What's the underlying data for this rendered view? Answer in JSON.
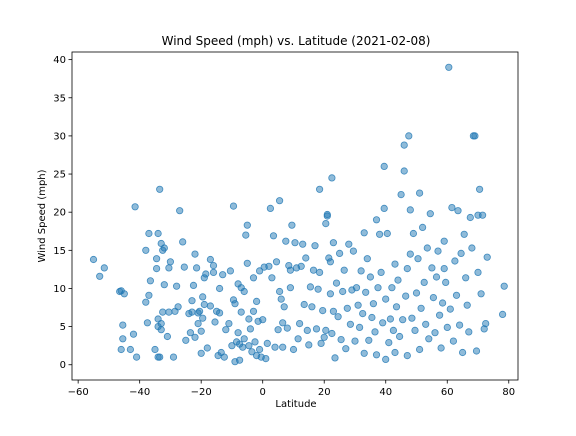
{
  "chart_data": {
    "type": "scatter",
    "title": "Wind Speed (mph) vs. Latitude (2021-02-08)",
    "xlabel": "Latitude",
    "ylabel": "Wind Speed (mph)",
    "xlim": [
      -62,
      83
    ],
    "ylim": [
      -2,
      41
    ],
    "xticks": [
      -60,
      -40,
      -20,
      0,
      20,
      40,
      60,
      80
    ],
    "yticks": [
      0,
      5,
      10,
      15,
      20,
      25,
      30,
      35,
      40
    ],
    "xtick_labels": [
      "−60",
      "−40",
      "−20",
      "0",
      "20",
      "40",
      "60",
      "80"
    ],
    "ytick_labels": [
      "0",
      "5",
      "10",
      "15",
      "20",
      "25",
      "30",
      "35",
      "40"
    ],
    "grid": false,
    "marker_color": "#1f77b4",
    "marker_alpha": 0.5,
    "points": [
      [
        -55,
        13.8
      ],
      [
        -53,
        11.6
      ],
      [
        -51.5,
        12.7
      ],
      [
        -46.5,
        9.6
      ],
      [
        -46,
        9.7
      ],
      [
        -45,
        9.3
      ],
      [
        -46,
        2
      ],
      [
        -45.5,
        3.4
      ],
      [
        -45.5,
        5.2
      ],
      [
        -43,
        2
      ],
      [
        -42,
        4
      ],
      [
        -41.5,
        20.7
      ],
      [
        -41,
        1
      ],
      [
        -38,
        15
      ],
      [
        -38,
        8.2
      ],
      [
        -37.5,
        5.5
      ],
      [
        -37,
        9.1
      ],
      [
        -37,
        17.2
      ],
      [
        -36.5,
        11
      ],
      [
        -35,
        2
      ],
      [
        -34.5,
        12.6
      ],
      [
        -34.5,
        13.9
      ],
      [
        -34,
        17.2
      ],
      [
        -34,
        5
      ],
      [
        -34,
        6
      ],
      [
        -34,
        1
      ],
      [
        -33.5,
        23
      ],
      [
        -33.5,
        1
      ],
      [
        -33,
        4.6
      ],
      [
        -33,
        5.4
      ],
      [
        -33,
        15.9
      ],
      [
        -32.5,
        6.9
      ],
      [
        -32.5,
        15
      ],
      [
        -32,
        15.3
      ],
      [
        -32,
        10.5
      ],
      [
        -31,
        3.7
      ],
      [
        -30.5,
        6.9
      ],
      [
        -30.5,
        12.7
      ],
      [
        -30,
        13.5
      ],
      [
        -29,
        1
      ],
      [
        -28.5,
        7
      ],
      [
        -28,
        10.3
      ],
      [
        -27.5,
        7.6
      ],
      [
        -27,
        20.2
      ],
      [
        -26,
        16.1
      ],
      [
        -25.5,
        12.8
      ],
      [
        -25,
        3.2
      ],
      [
        -24,
        6.7
      ],
      [
        -23.5,
        4.2
      ],
      [
        -23,
        6.9
      ],
      [
        -23,
        8.4
      ],
      [
        -22.5,
        10.4
      ],
      [
        -22,
        3.6
      ],
      [
        -22,
        14.5
      ],
      [
        -21.5,
        12.7
      ],
      [
        -21,
        6.8
      ],
      [
        -21,
        5.4
      ],
      [
        -20.5,
        7
      ],
      [
        -20,
        1.5
      ],
      [
        -20,
        4.4
      ],
      [
        -19.5,
        8.9
      ],
      [
        -19.5,
        6.1
      ],
      [
        -19,
        11.4
      ],
      [
        -19,
        7.9
      ],
      [
        -18.5,
        11.9
      ],
      [
        -18,
        2.2
      ],
      [
        -17,
        7.7
      ],
      [
        -17,
        13.8
      ],
      [
        -16,
        12.1
      ],
      [
        -16,
        13
      ],
      [
        -15.5,
        5.6
      ],
      [
        -15,
        7
      ],
      [
        -14.5,
        1.2
      ],
      [
        -14,
        6.8
      ],
      [
        -14,
        10
      ],
      [
        -13.5,
        1.6
      ],
      [
        -13,
        11.8
      ],
      [
        -12.5,
        1
      ],
      [
        -12,
        4.6
      ],
      [
        -11,
        5.4
      ],
      [
        -10.5,
        12.3
      ],
      [
        -10,
        2.5
      ],
      [
        -9.5,
        20.8
      ],
      [
        -9.5,
        8.5
      ],
      [
        -9,
        8
      ],
      [
        -9,
        0.4
      ],
      [
        -8.5,
        3
      ],
      [
        -8,
        10.6
      ],
      [
        -8,
        4.2
      ],
      [
        -7.5,
        2.7
      ],
      [
        -7.5,
        0.6
      ],
      [
        -7,
        6.9
      ],
      [
        -7,
        10.1
      ],
      [
        -6.5,
        2.3
      ],
      [
        -6,
        3.4
      ],
      [
        -6,
        9.6
      ],
      [
        -5.5,
        17
      ],
      [
        -5,
        18.3
      ],
      [
        -5,
        13.3
      ],
      [
        -4.5,
        2.5
      ],
      [
        -4.5,
        6
      ],
      [
        -4,
        4.7
      ],
      [
        -3.5,
        1.7
      ],
      [
        -3,
        7
      ],
      [
        -3,
        11.4
      ],
      [
        -2.5,
        3
      ],
      [
        -2,
        1.2
      ],
      [
        -2,
        8.3
      ],
      [
        -1.5,
        5.7
      ],
      [
        -1,
        2
      ],
      [
        -1,
        12.3
      ],
      [
        -0.5,
        1
      ],
      [
        0,
        5.9
      ],
      [
        0.5,
        12.8
      ],
      [
        1,
        0.8
      ],
      [
        1.5,
        2.8
      ],
      [
        2,
        12.9
      ],
      [
        2.5,
        20.5
      ],
      [
        3,
        11.4
      ],
      [
        3.5,
        16.9
      ],
      [
        4,
        2.3
      ],
      [
        4.5,
        13.5
      ],
      [
        5,
        4.6
      ],
      [
        5.5,
        21.5
      ],
      [
        5.5,
        9.6
      ],
      [
        6,
        8.6
      ],
      [
        6.5,
        5.5
      ],
      [
        6.5,
        2.3
      ],
      [
        7,
        7.6
      ],
      [
        7.5,
        16.2
      ],
      [
        8,
        4.8
      ],
      [
        8.5,
        13
      ],
      [
        9,
        10.1
      ],
      [
        9,
        12.4
      ],
      [
        9.5,
        18.3
      ],
      [
        10,
        2
      ],
      [
        10.5,
        16
      ],
      [
        11,
        12.7
      ],
      [
        11.5,
        3.4
      ],
      [
        12,
        5.4
      ],
      [
        12.5,
        12.9
      ],
      [
        13,
        15.8
      ],
      [
        13.5,
        7.9
      ],
      [
        14,
        14
      ],
      [
        14.5,
        4.5
      ],
      [
        15,
        2.6
      ],
      [
        15.5,
        10.2
      ],
      [
        16,
        7.6
      ],
      [
        16.5,
        12.4
      ],
      [
        17,
        15.6
      ],
      [
        17.5,
        4.7
      ],
      [
        18,
        9.9
      ],
      [
        18.5,
        23
      ],
      [
        18.5,
        12.1
      ],
      [
        19,
        2.8
      ],
      [
        19.5,
        7.1
      ],
      [
        20,
        3.6
      ],
      [
        20.5,
        18.5
      ],
      [
        20.5,
        4.5
      ],
      [
        21,
        19.5
      ],
      [
        21,
        19.7
      ],
      [
        21.5,
        14
      ],
      [
        22,
        13.5
      ],
      [
        22,
        9.3
      ],
      [
        22.5,
        24.5
      ],
      [
        22.5,
        4.1
      ],
      [
        23,
        7
      ],
      [
        23,
        16
      ],
      [
        23.5,
        0.9
      ],
      [
        24,
        10.7
      ],
      [
        24.5,
        6.3
      ],
      [
        25,
        14.6
      ],
      [
        25.5,
        3.3
      ],
      [
        26,
        9.6
      ],
      [
        26.5,
        12.4
      ],
      [
        27,
        2.1
      ],
      [
        27.5,
        7.4
      ],
      [
        28,
        15.8
      ],
      [
        28.5,
        5.3
      ],
      [
        29,
        9.8
      ],
      [
        29.5,
        14.9
      ],
      [
        30,
        3.1
      ],
      [
        30.5,
        10.1
      ],
      [
        31,
        7.8
      ],
      [
        31.5,
        4.9
      ],
      [
        32,
        12.3
      ],
      [
        32.5,
        6.7
      ],
      [
        33,
        1.5
      ],
      [
        33,
        17.3
      ],
      [
        33.5,
        9.5
      ],
      [
        34,
        13.9
      ],
      [
        34.5,
        3.2
      ],
      [
        35,
        11.5
      ],
      [
        35.5,
        6.2
      ],
      [
        36,
        8
      ],
      [
        36.5,
        4.3
      ],
      [
        37,
        1.3
      ],
      [
        37,
        19
      ],
      [
        37.5,
        10.1
      ],
      [
        38,
        17.1
      ],
      [
        38.5,
        12.1
      ],
      [
        39,
        5.5
      ],
      [
        39.5,
        26
      ],
      [
        39.5,
        20.5
      ],
      [
        40,
        0.7
      ],
      [
        40,
        8.6
      ],
      [
        40.5,
        17.2
      ],
      [
        41,
        2.9
      ],
      [
        41.5,
        6
      ],
      [
        42,
        10.1
      ],
      [
        42.5,
        4.5
      ],
      [
        43,
        1.6
      ],
      [
        43,
        13.2
      ],
      [
        43.5,
        7.6
      ],
      [
        44,
        11.1
      ],
      [
        44.5,
        3.7
      ],
      [
        45,
        22.3
      ],
      [
        45.5,
        5.9
      ],
      [
        46,
        25.4
      ],
      [
        46,
        28.8
      ],
      [
        46.5,
        9
      ],
      [
        47,
        12.6
      ],
      [
        47,
        1.2
      ],
      [
        47.5,
        30
      ],
      [
        48,
        14.5
      ],
      [
        48,
        20.3
      ],
      [
        48.5,
        6.1
      ],
      [
        49,
        17.2
      ],
      [
        49.5,
        4.5
      ],
      [
        50,
        9.4
      ],
      [
        50.5,
        13.9
      ],
      [
        51,
        2
      ],
      [
        51,
        22.5
      ],
      [
        51.5,
        7.4
      ],
      [
        52,
        18
      ],
      [
        52.5,
        10.8
      ],
      [
        53,
        5.3
      ],
      [
        53.5,
        15.3
      ],
      [
        54,
        3.4
      ],
      [
        54.5,
        19.8
      ],
      [
        55,
        12.7
      ],
      [
        55.5,
        8.8
      ],
      [
        56,
        4.2
      ],
      [
        56.5,
        11.5
      ],
      [
        57,
        14.9
      ],
      [
        57.5,
        6.5
      ],
      [
        58,
        2.2
      ],
      [
        58.5,
        8.1
      ],
      [
        59,
        16.2
      ],
      [
        59,
        12.6
      ],
      [
        59.5,
        10.8
      ],
      [
        60,
        4.9
      ],
      [
        60.5,
        39
      ],
      [
        61,
        7.3
      ],
      [
        61.5,
        20.6
      ],
      [
        62,
        3.1
      ],
      [
        62.5,
        13.6
      ],
      [
        63,
        9.1
      ],
      [
        63.5,
        20.2
      ],
      [
        64,
        5.2
      ],
      [
        64.5,
        14.6
      ],
      [
        65,
        1.6
      ],
      [
        65.5,
        17.1
      ],
      [
        66,
        11.4
      ],
      [
        66.5,
        7.8
      ],
      [
        67,
        4.3
      ],
      [
        67.5,
        19.3
      ],
      [
        68,
        15.3
      ],
      [
        68.5,
        30
      ],
      [
        69,
        30
      ],
      [
        69.5,
        1.8
      ],
      [
        70,
        12.1
      ],
      [
        70,
        19.6
      ],
      [
        70.5,
        23
      ],
      [
        71,
        9.3
      ],
      [
        71.5,
        19.6
      ],
      [
        72,
        4.7
      ],
      [
        72.5,
        5.4
      ],
      [
        73,
        14.1
      ],
      [
        78,
        6.6
      ],
      [
        78.5,
        10.3
      ]
    ]
  }
}
